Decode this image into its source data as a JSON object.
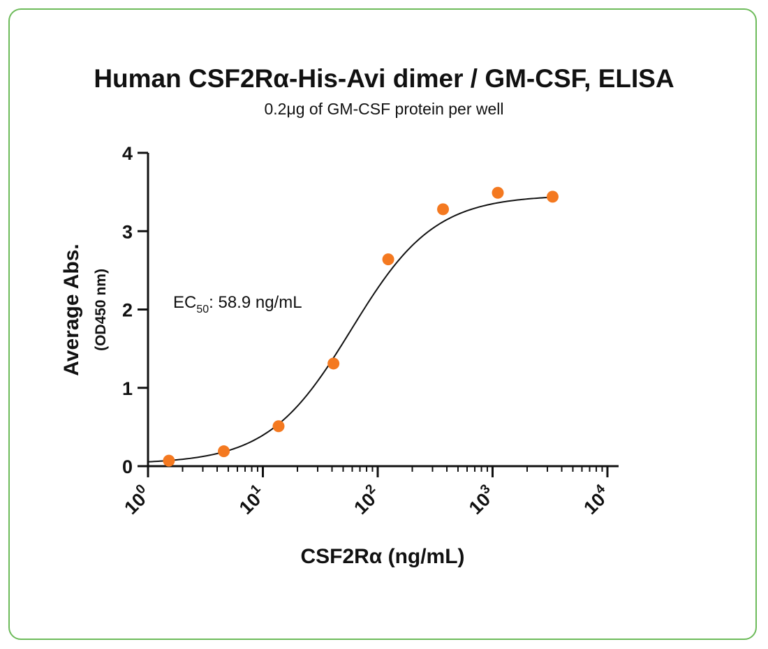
{
  "chart_data": {
    "type": "scatter",
    "title": "Human CSF2Rα-His-Avi dimer / GM-CSF, ELISA",
    "subtitle": "0.2μg of GM-CSF protein per well",
    "xlabel": "CSF2Rα (ng/mL)",
    "ylabel": "Average Abs.",
    "ylabel_sub": "(OD450 nm)",
    "x_scale": "log",
    "xlim": [
      1,
      10000
    ],
    "ylim": [
      0,
      4
    ],
    "x_ticks": [
      {
        "value": 1,
        "base": "10",
        "exp": "0"
      },
      {
        "value": 10,
        "base": "10",
        "exp": "1"
      },
      {
        "value": 100,
        "base": "10",
        "exp": "2"
      },
      {
        "value": 1000,
        "base": "10",
        "exp": "3"
      },
      {
        "value": 10000,
        "base": "10",
        "exp": "4"
      }
    ],
    "y_ticks": [
      "0",
      "1",
      "2",
      "3",
      "4"
    ],
    "grid": false,
    "marker_color": "#f47920",
    "line_color": "#111111",
    "series": [
      {
        "x": [
          1.52,
          4.57,
          13.7,
          41.2,
          123.5,
          370.4,
          1111,
          3333
        ],
        "y": [
          0.07,
          0.19,
          0.51,
          1.31,
          2.64,
          3.28,
          3.49,
          3.44
        ]
      }
    ],
    "fit": {
      "bottom": 0.03,
      "top": 3.46,
      "ec50": 58.9,
      "hill": 1.2
    },
    "annotation": {
      "prefix": "EC",
      "sub": "50",
      "text": ": 58.9 ng/mL"
    }
  }
}
